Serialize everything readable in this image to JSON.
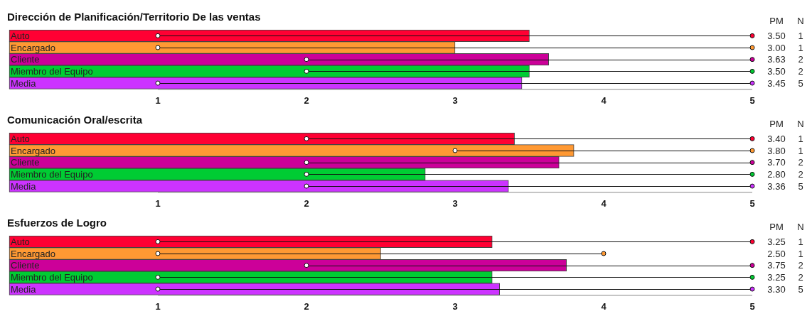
{
  "chart_data": [
    {
      "type": "bar",
      "orientation": "horizontal",
      "title": "Dirección de Planificación/Territorio De las ventas",
      "categories": [
        "Auto",
        "Encargado",
        "Cliente",
        "Miembro del Equipo",
        "Media"
      ],
      "series": [
        {
          "values": [
            3.5,
            3.0,
            3.63,
            3.5,
            3.45
          ],
          "colors": [
            "#ff0033",
            "#ff9933",
            "#cc0099",
            "#00cc33",
            "#cc33ff"
          ],
          "value_labels": [
            "3.50",
            "3.00",
            "3.63",
            "3.50",
            "3.45"
          ]
        },
        {
          "type": "scatter",
          "x": [
            "Auto",
            "Encargado",
            "Cliente",
            "Miembro del Equipo",
            "Media"
          ],
          "values": [
            1,
            1,
            2,
            2,
            1
          ],
          "color": "#ffffff"
        },
        {
          "type": "scatter",
          "x": [
            "Auto",
            "Encargado",
            "Cliente",
            "Miembro del Equipo",
            "Media"
          ],
          "values": [
            5,
            5,
            5,
            5,
            5
          ],
          "colors": [
            "#ff0033",
            "#ff9933",
            "#cc0099",
            "#00cc33",
            "#cc33ff"
          ]
        }
      ],
      "annotations": [
        "PM",
        "N",
        "1",
        "1",
        "2",
        "2",
        "5"
      ],
      "xlim": [
        0,
        5
      ],
      "xticks": [
        1,
        2,
        3,
        4,
        5
      ],
      "marker": "circle"
    },
    {
      "type": "bar",
      "orientation": "horizontal",
      "title": "Comunicación Oral/escrita",
      "categories": [
        "Auto",
        "Encargado",
        "Cliente",
        "Miembro del Equipo",
        "Media"
      ],
      "series": [
        {
          "values": [
            3.4,
            3.8,
            3.7,
            2.8,
            3.36
          ],
          "colors": [
            "#ff0033",
            "#ff9933",
            "#cc0099",
            "#00cc33",
            "#cc33ff"
          ],
          "value_labels": [
            "3.40",
            "3.80",
            "3.70",
            "2.80",
            "3.36"
          ]
        },
        {
          "type": "scatter",
          "x": [
            "Auto",
            "Encargado",
            "Cliente",
            "Miembro del Equipo",
            "Media"
          ],
          "values": [
            2,
            3,
            2,
            2,
            2
          ],
          "color": "#ffffff"
        },
        {
          "type": "scatter",
          "x": [
            "Auto",
            "Encargado",
            "Cliente",
            "Miembro del Equipo",
            "Media"
          ],
          "values": [
            5,
            5,
            5,
            5,
            5
          ],
          "colors": [
            "#ff0033",
            "#ff9933",
            "#cc0099",
            "#00cc33",
            "#cc33ff"
          ]
        }
      ],
      "annotations": [
        "PM",
        "N",
        "1",
        "1",
        "2",
        "2",
        "5"
      ],
      "xlim": [
        0,
        5
      ],
      "xticks": [
        1,
        2,
        3,
        4,
        5
      ],
      "marker": "circle"
    },
    {
      "type": "bar",
      "orientation": "horizontal",
      "title": "Esfuerzos de Logro",
      "categories": [
        "Auto",
        "Encargado",
        "Cliente",
        "Miembro del Equipo",
        "Media"
      ],
      "series": [
        {
          "values": [
            3.25,
            2.5,
            3.75,
            3.25,
            3.3
          ],
          "colors": [
            "#ff0033",
            "#ff9933",
            "#cc0099",
            "#00cc33",
            "#cc33ff"
          ],
          "value_labels": [
            "3.25",
            "2.50",
            "3.75",
            "3.25",
            "3.30"
          ]
        },
        {
          "type": "scatter",
          "x": [
            "Auto",
            "Encargado",
            "Cliente",
            "Miembro del Equipo",
            "Media"
          ],
          "values": [
            1,
            1,
            2,
            1,
            1
          ],
          "color": "#ffffff"
        },
        {
          "type": "scatter",
          "x": [
            "Auto",
            "Encargado",
            "Cliente",
            "Miembro del Equipo",
            "Media"
          ],
          "values": [
            5,
            4,
            5,
            5,
            5
          ],
          "colors": [
            "#ff0033",
            "#ff9933",
            "#cc0099",
            "#00cc33",
            "#cc33ff"
          ]
        }
      ],
      "annotations": [
        "PM",
        "N",
        "1",
        "1",
        "2",
        "2",
        "5"
      ],
      "xlim": [
        0,
        5
      ],
      "xticks": [
        1,
        2,
        3,
        4,
        5
      ],
      "marker": "circle"
    }
  ]
}
